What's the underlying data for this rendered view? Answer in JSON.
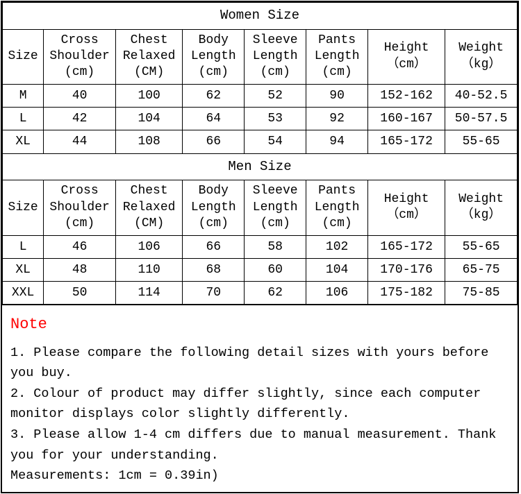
{
  "women": {
    "title": "Women Size",
    "headers": {
      "size": "Size",
      "cross_shoulder": "Cross\nShoulder\n(cm)",
      "chest_relaxed": "Chest\nRelaxed\n(CM)",
      "body_length": "Body\nLength\n(cm)",
      "sleeve_length": "Sleeve\nLength\n(cm)",
      "pants_length": "Pants\nLength\n(cm)",
      "height": "Height\n（cm）",
      "weight": "Weight\n（kg）"
    },
    "rows": [
      {
        "size": "M",
        "cross_shoulder": "40",
        "chest_relaxed": "100",
        "body_length": "62",
        "sleeve_length": "52",
        "pants_length": "90",
        "height": "152-162",
        "weight": "40-52.5"
      },
      {
        "size": "L",
        "cross_shoulder": "42",
        "chest_relaxed": "104",
        "body_length": "64",
        "sleeve_length": "53",
        "pants_length": "92",
        "height": "160-167",
        "weight": "50-57.5"
      },
      {
        "size": "XL",
        "cross_shoulder": "44",
        "chest_relaxed": "108",
        "body_length": "66",
        "sleeve_length": "54",
        "pants_length": "94",
        "height": "165-172",
        "weight": "55-65"
      }
    ]
  },
  "men": {
    "title": "Men Size",
    "headers": {
      "size": "Size",
      "cross_shoulder": "Cross\nShoulder\n(cm)",
      "chest_relaxed": "Chest\nRelaxed\n(CM)",
      "body_length": "Body\nLength\n(cm)",
      "sleeve_length": "Sleeve\nLength\n(cm)",
      "pants_length": "Pants\nLength\n(cm)",
      "height": "Height\n（cm）",
      "weight": "Weight\n（kg）"
    },
    "rows": [
      {
        "size": "L",
        "cross_shoulder": "46",
        "chest_relaxed": "106",
        "body_length": "66",
        "sleeve_length": "58",
        "pants_length": "102",
        "height": "165-172",
        "weight": "55-65"
      },
      {
        "size": "XL",
        "cross_shoulder": "48",
        "chest_relaxed": "110",
        "body_length": "68",
        "sleeve_length": "60",
        "pants_length": "104",
        "height": "170-176",
        "weight": "65-75"
      },
      {
        "size": "XXL",
        "cross_shoulder": "50",
        "chest_relaxed": "114",
        "body_length": "70",
        "sleeve_length": "62",
        "pants_length": "106",
        "height": "175-182",
        "weight": "75-85"
      }
    ]
  },
  "note": {
    "title": "Note",
    "line1": "1. Please compare the following detail sizes with yours before you buy.",
    "line2": "2. Colour of product may differ slightly, since each computer monitor displays color slightly differently.",
    "line3": "3. Please allow 1-4 cm differs due to manual measurement. Thank you for your understanding.",
    "line4": "Measurements: 1cm = 0.39in)"
  },
  "colors": {
    "note_title": "#ff0000",
    "border": "#000000",
    "bg": "#ffffff",
    "text": "#000000"
  },
  "col_widths_pct": [
    8,
    14,
    13,
    12,
    12,
    12,
    15,
    14
  ]
}
